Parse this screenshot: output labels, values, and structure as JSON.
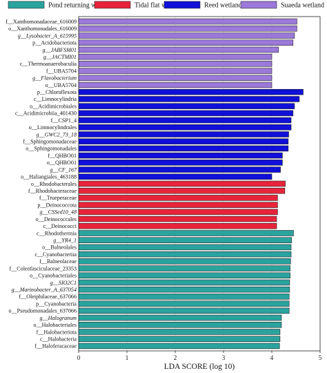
{
  "chart_data": {
    "type": "bar",
    "orientation": "horizontal",
    "xlabel": "LDA SCORE (log 10)",
    "xlim": [
      0,
      5
    ],
    "xticks": [
      0,
      1,
      2,
      3,
      4,
      5
    ],
    "grid": true,
    "legend_position": "top",
    "groups": [
      {
        "name": "Pond returning wetland",
        "color": "#2aa39e"
      },
      {
        "name": "Tidal flat wetland",
        "color": "#e8243a"
      },
      {
        "name": "Reed wetland",
        "color": "#1010d8"
      },
      {
        "name": "Suaeda wetland",
        "color": "#9b79d9"
      }
    ],
    "bars": [
      {
        "label": "f__Xanthomonadaceae_616009",
        "value": 4.52,
        "group": "Suaeda wetland",
        "italic": false
      },
      {
        "label": "o__Xanthomonadales_616009",
        "value": 4.52,
        "group": "Suaeda wetland",
        "italic": false
      },
      {
        "label": "g__Lysobacter_A_615995",
        "value": 4.47,
        "group": "Suaeda wetland",
        "italic": true
      },
      {
        "label": "p__Acidobacteriota",
        "value": 4.44,
        "group": "Suaeda wetland",
        "italic": false
      },
      {
        "label": "g__JABFSM01",
        "value": 4.14,
        "group": "Suaeda wetland",
        "italic": true
      },
      {
        "label": "g__JACTMI01",
        "value": 4.0,
        "group": "Suaeda wetland",
        "italic": true
      },
      {
        "label": "c__Thermoanaerobaculia",
        "value": 4.0,
        "group": "Suaeda wetland",
        "italic": false
      },
      {
        "label": "f__UBA5704",
        "value": 4.0,
        "group": "Suaeda wetland",
        "italic": false
      },
      {
        "label": "g__Flavobacterium",
        "value": 4.0,
        "group": "Suaeda wetland",
        "italic": true
      },
      {
        "label": "o__UBA5704",
        "value": 4.0,
        "group": "Suaeda wetland",
        "italic": false
      },
      {
        "label": "p__Chloroflexota",
        "value": 4.65,
        "group": "Reed wetland",
        "italic": false
      },
      {
        "label": "c__Limnocylindria",
        "value": 4.57,
        "group": "Reed wetland",
        "italic": false
      },
      {
        "label": "o__Acidimicrobiales",
        "value": 4.47,
        "group": "Reed wetland",
        "italic": false
      },
      {
        "label": "c__Acidimicrobiia_401430",
        "value": 4.44,
        "group": "Reed wetland",
        "italic": false
      },
      {
        "label": "f__CSP1_4",
        "value": 4.4,
        "group": "Reed wetland",
        "italic": false
      },
      {
        "label": "o__Limnocylindrales",
        "value": 4.4,
        "group": "Reed wetland",
        "italic": false
      },
      {
        "label": "g__GWC2_73_18",
        "value": 4.35,
        "group": "Reed wetland",
        "italic": true
      },
      {
        "label": "f__Sphingomonadaceae",
        "value": 4.34,
        "group": "Reed wetland",
        "italic": false
      },
      {
        "label": "o__Sphingomonadales",
        "value": 4.34,
        "group": "Reed wetland",
        "italic": false
      },
      {
        "label": "f__QHBO01",
        "value": 4.22,
        "group": "Reed wetland",
        "italic": false
      },
      {
        "label": "o__QHBO01",
        "value": 4.22,
        "group": "Reed wetland",
        "italic": false
      },
      {
        "label": "g__CF_167",
        "value": 4.18,
        "group": "Reed wetland",
        "italic": true
      },
      {
        "label": "o__Haliangiales_463188",
        "value": 4.0,
        "group": "Reed wetland",
        "italic": false
      },
      {
        "label": "o__Rhodobacterales",
        "value": 4.28,
        "group": "Tidal flat wetland",
        "italic": false
      },
      {
        "label": "f__Rhodobacteraceae",
        "value": 4.27,
        "group": "Tidal flat wetland",
        "italic": false
      },
      {
        "label": "f__Trueperaceae",
        "value": 4.12,
        "group": "Tidal flat wetland",
        "italic": false
      },
      {
        "label": "p__Deinococcota",
        "value": 4.12,
        "group": "Tidal flat wetland",
        "italic": false
      },
      {
        "label": "g__CSSed10_48",
        "value": 4.12,
        "group": "Tidal flat wetland",
        "italic": true
      },
      {
        "label": "o__Deinococcales",
        "value": 4.1,
        "group": "Tidal flat wetland",
        "italic": false
      },
      {
        "label": "c__Deinococci",
        "value": 4.1,
        "group": "Tidal flat wetland",
        "italic": false
      },
      {
        "label": "c__Rhodothermia",
        "value": 4.45,
        "group": "Pond returning wetland",
        "italic": false
      },
      {
        "label": "g__YR4_1",
        "value": 4.41,
        "group": "Pond returning wetland",
        "italic": true
      },
      {
        "label": "o__Balneolales",
        "value": 4.4,
        "group": "Pond returning wetland",
        "italic": false
      },
      {
        "label": "c__Cyanobacteriia",
        "value": 4.4,
        "group": "Pond returning wetland",
        "italic": false
      },
      {
        "label": "f__Balneolaceae",
        "value": 4.39,
        "group": "Pond returning wetland",
        "italic": false
      },
      {
        "label": "f__Coleofasciculaceae_23353",
        "value": 4.38,
        "group": "Pond returning wetland",
        "italic": false
      },
      {
        "label": "o__Cyanobacteriales",
        "value": 4.38,
        "group": "Pond returning wetland",
        "italic": false
      },
      {
        "label": "g__SIO2C1",
        "value": 4.37,
        "group": "Pond returning wetland",
        "italic": true
      },
      {
        "label": "g__Marinobacter_A_637054",
        "value": 4.37,
        "group": "Pond returning wetland",
        "italic": true
      },
      {
        "label": "f__Oleiphilaceae_637066",
        "value": 4.36,
        "group": "Pond returning wetland",
        "italic": false
      },
      {
        "label": "p__Cyanobacteria",
        "value": 4.36,
        "group": "Pond returning wetland",
        "italic": false
      },
      {
        "label": "o__Pseudomonadales_637066",
        "value": 4.36,
        "group": "Pond returning wetland",
        "italic": false
      },
      {
        "label": "g__Halogranum",
        "value": 4.2,
        "group": "Pond returning wetland",
        "italic": true
      },
      {
        "label": "o__Halobacteriales",
        "value": 4.2,
        "group": "Pond returning wetland",
        "italic": false
      },
      {
        "label": "f__Halobacteriota",
        "value": 4.17,
        "group": "Pond returning wetland",
        "italic": false
      },
      {
        "label": "c__Halobacteria",
        "value": 4.17,
        "group": "Pond returning wetland",
        "italic": false
      },
      {
        "label": "f__Haloferacaceae",
        "value": 4.16,
        "group": "Pond returning wetland",
        "italic": false
      }
    ]
  }
}
